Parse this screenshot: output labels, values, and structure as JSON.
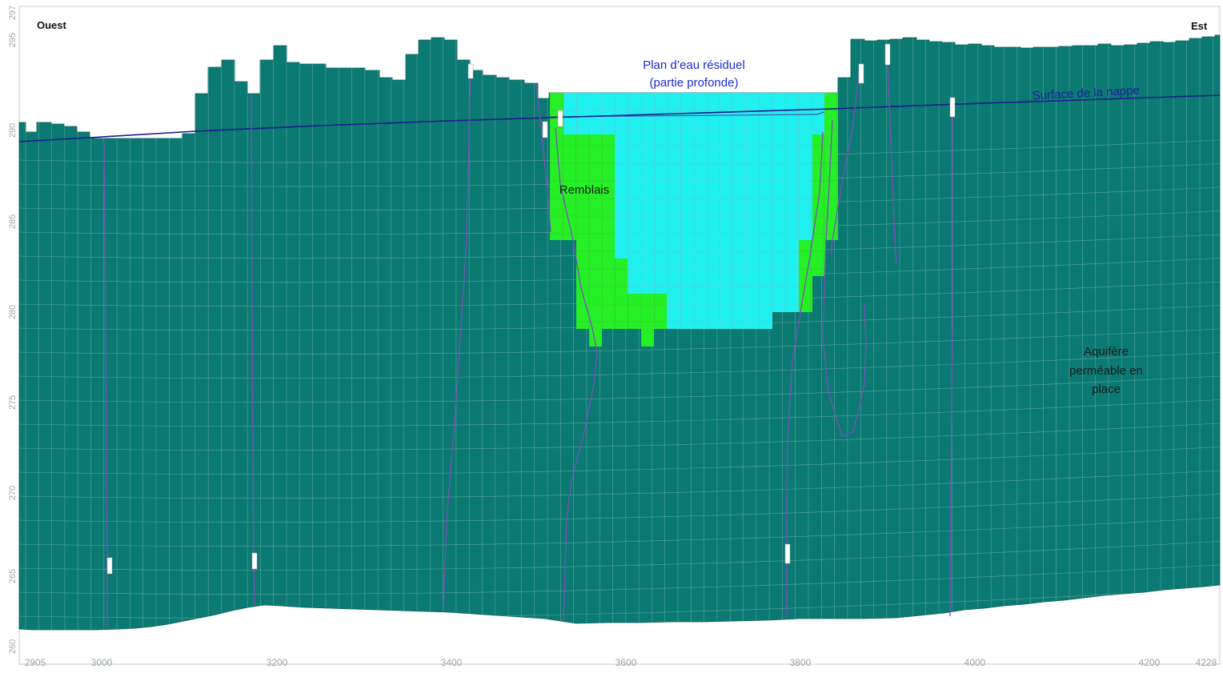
{
  "labels": {
    "west": "Ouest",
    "east": "Est",
    "lake_line1": "Plan d’eau résiduel",
    "lake_line2": "(partie profonde)",
    "fill": "Remblais",
    "water_table": "Surface de la nappe",
    "aquifer_line1": "Aquifère",
    "aquifer_line2": "perméable en",
    "aquifer_line3": "place"
  },
  "y_axis_ticks": [
    "297",
    "295",
    "290",
    "285",
    "280",
    "275",
    "270",
    "265",
    "260"
  ],
  "x_axis_ticks": [
    "2905",
    "3000",
    "3200",
    "3400",
    "3600",
    "3800",
    "4000",
    "4200",
    "4228"
  ],
  "colors": {
    "aquifer": "#0b7a73",
    "grid_line": "#5aa39d",
    "lake": "#1ff0f0",
    "fill": "#25f025",
    "water_table": "#1a1a8c",
    "flow_lines": "#7b4fbd",
    "background": "#ffffff"
  }
}
